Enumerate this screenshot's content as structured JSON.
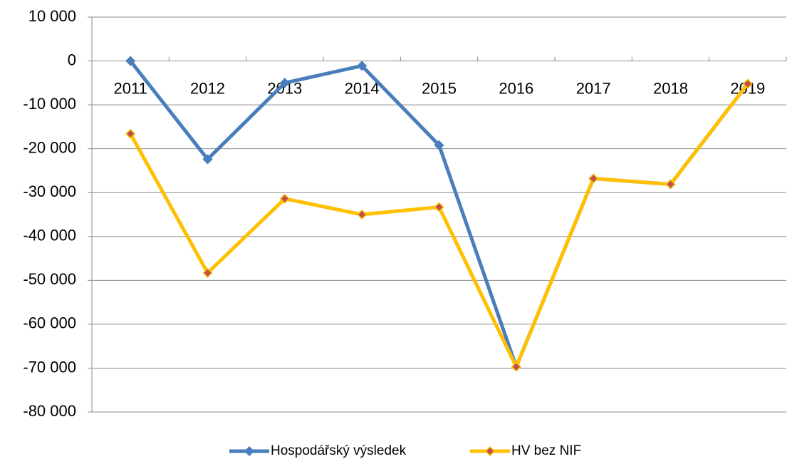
{
  "chart_data": {
    "type": "line",
    "categories": [
      "2011",
      "2012",
      "2013",
      "2014",
      "2015",
      "2016",
      "2017",
      "2018",
      "2019"
    ],
    "series": [
      {
        "name": "Hospodářský výsledek",
        "color": "#4a7ebb",
        "marker_color": "#4a7ebb",
        "values": [
          0,
          -22400,
          -5000,
          -1100,
          -19200,
          -69700,
          -26800,
          -28100,
          -5200
        ]
      },
      {
        "name": "HV bez NIF",
        "color": "#ffc000",
        "marker_color": "#c0504d",
        "values": [
          -16600,
          -48300,
          -31400,
          -35000,
          -33300,
          -69700,
          -26800,
          -28100,
          -5200
        ]
      }
    ],
    "ylim": [
      -80000,
      10000
    ],
    "yticks": [
      {
        "value": -80000,
        "label": "-80 000"
      },
      {
        "value": -70000,
        "label": "-70 000"
      },
      {
        "value": -60000,
        "label": "-60 000"
      },
      {
        "value": -50000,
        "label": "-50 000"
      },
      {
        "value": -40000,
        "label": "-40 000"
      },
      {
        "value": -30000,
        "label": "-30 000"
      },
      {
        "value": -20000,
        "label": "-20 000"
      },
      {
        "value": -10000,
        "label": "-10 000"
      },
      0,
      {
        "value": 10000,
        "label": "10 000"
      }
    ],
    "grid": true,
    "legend": "bottom"
  }
}
